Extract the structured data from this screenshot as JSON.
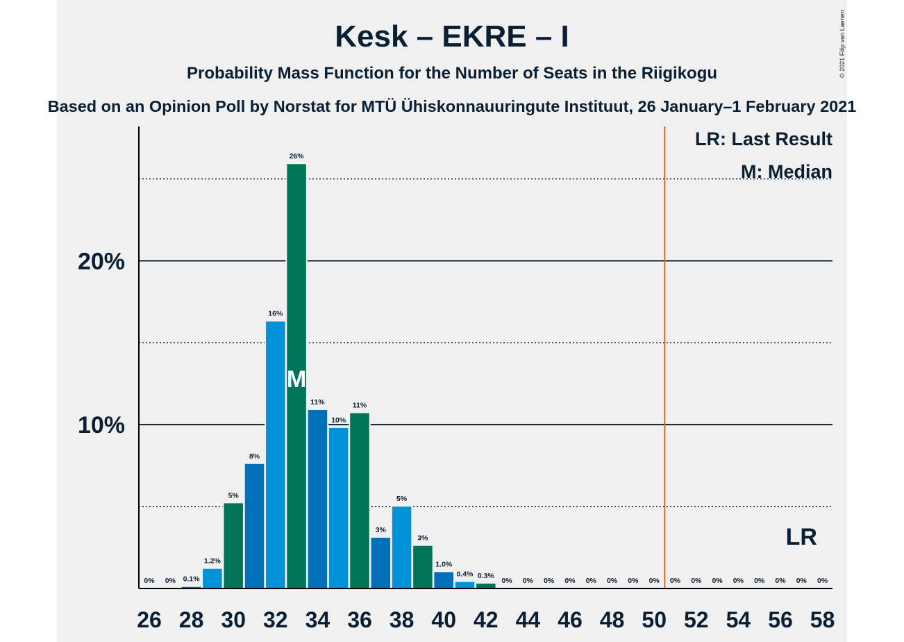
{
  "chart_data": {
    "type": "bar",
    "title": "Kesk – EKRE – I",
    "subtitle": "Probability Mass Function for the Number of Seats in the Riigikogu",
    "source": "Based on an Opinion Poll by Norstat for MTÜ Ühiskonnauuringute Instituut, 26 January–1 February 2021",
    "copyright": "© 2021 Filip van Laenen",
    "xlabel": "",
    "ylabel": "",
    "x": [
      26,
      27,
      28,
      29,
      30,
      31,
      32,
      33,
      34,
      35,
      36,
      37,
      38,
      39,
      40,
      41,
      42,
      43,
      44,
      45,
      46,
      47,
      48,
      49,
      50,
      51,
      52,
      53,
      54,
      55,
      56,
      57,
      58
    ],
    "values": [
      0,
      0,
      0.1,
      1.2,
      5.2,
      7.6,
      16.3,
      25.9,
      10.9,
      9.8,
      10.7,
      3.1,
      5.0,
      2.6,
      1.0,
      0.4,
      0.3,
      0,
      0,
      0,
      0,
      0,
      0,
      0,
      0,
      0,
      0,
      0,
      0,
      0,
      0,
      0,
      0
    ],
    "labels": [
      "0%",
      "0%",
      "0.1%",
      "1.2%",
      "5%",
      "8%",
      "16%",
      "26%",
      "11%",
      "10%",
      "11%",
      "3%",
      "5%",
      "3%",
      "1.0%",
      "0.4%",
      "0.3%",
      "0%",
      "0%",
      "0%",
      "0%",
      "0%",
      "0%",
      "0%",
      "0%",
      "0%",
      "0%",
      "0%",
      "0%",
      "0%",
      "0%",
      "0%",
      "0%"
    ],
    "x_tick_labels": [
      "26",
      "28",
      "30",
      "32",
      "34",
      "36",
      "38",
      "40",
      "42",
      "44",
      "46",
      "48",
      "50",
      "52",
      "54",
      "56",
      "58"
    ],
    "y_tick_labels": [
      {
        "value": 10,
        "label": "10%"
      },
      {
        "value": 20,
        "label": "20%"
      }
    ],
    "ylim": [
      0,
      28.2
    ],
    "gridlines_solid": [
      10,
      20
    ],
    "gridlines_dotted": [
      5,
      15,
      25
    ],
    "median_seat": 33,
    "median_marker": "M",
    "majority_line": 50.5,
    "last_result_marker": "LR",
    "last_result_seat": 57,
    "legend": [
      "LR: Last Result",
      "M: Median"
    ],
    "legend_position": "top-right",
    "colors": {
      "blue_light": "#0292d9",
      "blue_dark": "#0270b8",
      "green": "#007456",
      "majority_line": "#e0641a",
      "axis": "#000000",
      "text": "#0b1f33",
      "panel_bg": "#f0f0f0",
      "median_text": "#ffffff"
    },
    "bar_color_cycle": [
      "blue_light",
      "green",
      "blue_dark"
    ]
  }
}
